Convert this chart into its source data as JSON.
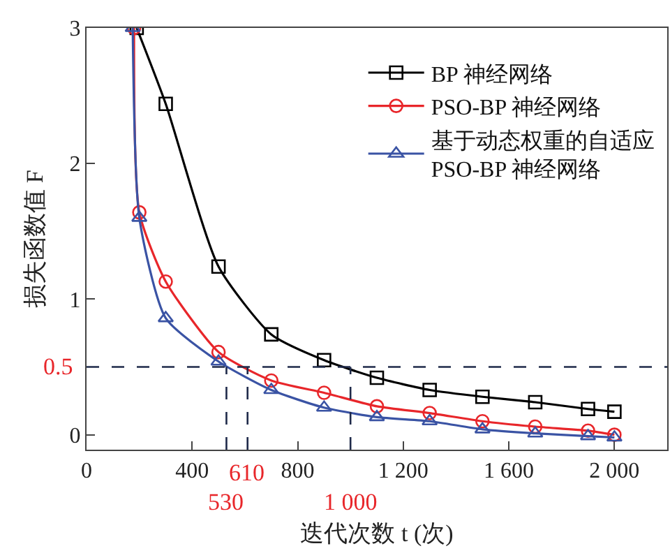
{
  "chart_data": {
    "type": "line",
    "xlabel": "迭代次数 t (次)",
    "ylabel": "损失函数值 F",
    "xlim": [
      0,
      2200
    ],
    "xticks": [
      0,
      400,
      800,
      {
        "value": 1200,
        "label": "1 200"
      },
      {
        "value": 1600,
        "label": "1 600"
      },
      {
        "value": 2000,
        "label": "2 000"
      }
    ],
    "ylim": [
      -0.11,
      3
    ],
    "yticks": [
      0,
      1,
      2,
      3
    ],
    "grid": false,
    "legend": "top right",
    "line_style": "solid",
    "series": [
      {
        "name": "BP 神经网络",
        "color": "#000000",
        "marker": "square",
        "x": [
          190,
          300,
          500,
          700,
          900,
          1100,
          1300,
          1500,
          1700,
          1900,
          2000
        ],
        "values": [
          3,
          2.44,
          1.24,
          0.74,
          0.55,
          0.42,
          0.33,
          0.28,
          0.24,
          0.19,
          0.17
        ]
      },
      {
        "name": "PSO-BP 神经网络",
        "color": "#e8262a",
        "marker": "circle",
        "x": [
          180,
          200,
          300,
          500,
          700,
          900,
          1100,
          1300,
          1500,
          1700,
          1900,
          2000
        ],
        "values": [
          3,
          1.64,
          1.13,
          0.61,
          0.4,
          0.31,
          0.21,
          0.16,
          0.1,
          0.06,
          0.03,
          0
        ]
      },
      {
        "name": "基于动态权重的自适应\nPSO-BP 神经网络",
        "color": "#3a53a4",
        "marker": "triangle",
        "x": [
          175,
          200,
          300,
          500,
          700,
          900,
          1100,
          1300,
          1500,
          1700,
          1900,
          2000
        ],
        "values": [
          3,
          1.6,
          0.86,
          0.54,
          0.33,
          0.2,
          0.13,
          0.1,
          0.04,
          0.01,
          -0.01,
          -0.02
        ]
      }
    ],
    "ref_lines": [
      {
        "axis": "y",
        "value": 0.5,
        "label": "0.5",
        "color": "#1f2a4a",
        "line_style": "dashed"
      },
      {
        "axis": "x",
        "value": 530,
        "label": "530",
        "color": "#1f2a4a",
        "line_style": "dashed"
      },
      {
        "axis": "x",
        "value": 610,
        "label": "610",
        "color": "#1f2a4a",
        "line_style": "dashed"
      },
      {
        "axis": "x",
        "value": 1000,
        "label": "1 000",
        "color": "#1f2a4a",
        "line_style": "dashed"
      }
    ]
  }
}
